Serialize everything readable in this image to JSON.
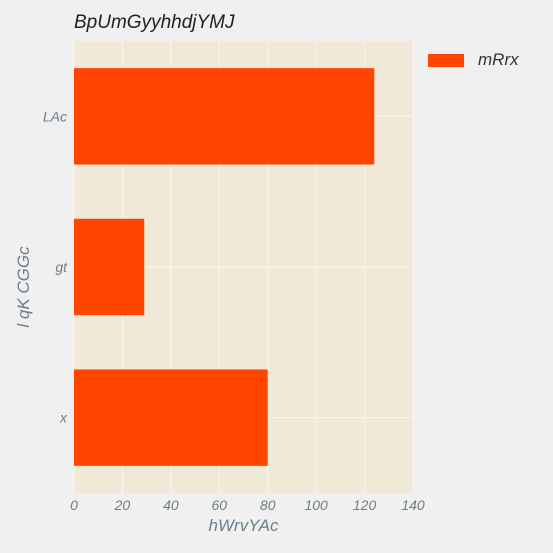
{
  "chart_data": {
    "type": "bar",
    "orientation": "horizontal",
    "title": "BpUmGyyhhdjYMJ",
    "xlabel": "hWrvYAc",
    "ylabel": "l qK CGGc",
    "categories": [
      "LAc",
      "gt",
      "x"
    ],
    "series": [
      {
        "name": "mRrx",
        "values": [
          124,
          29,
          80
        ]
      }
    ],
    "xlim": [
      0,
      140
    ],
    "xticks": [
      0,
      20,
      40,
      60,
      80,
      100,
      120,
      140
    ],
    "grid": true,
    "legend": "top-right, outside plot",
    "colors": {
      "bar": "#ff4500",
      "plot_bg": "#f0e9d7",
      "grid": "#faf6ea",
      "page_bg": "#f0f0f0"
    }
  }
}
